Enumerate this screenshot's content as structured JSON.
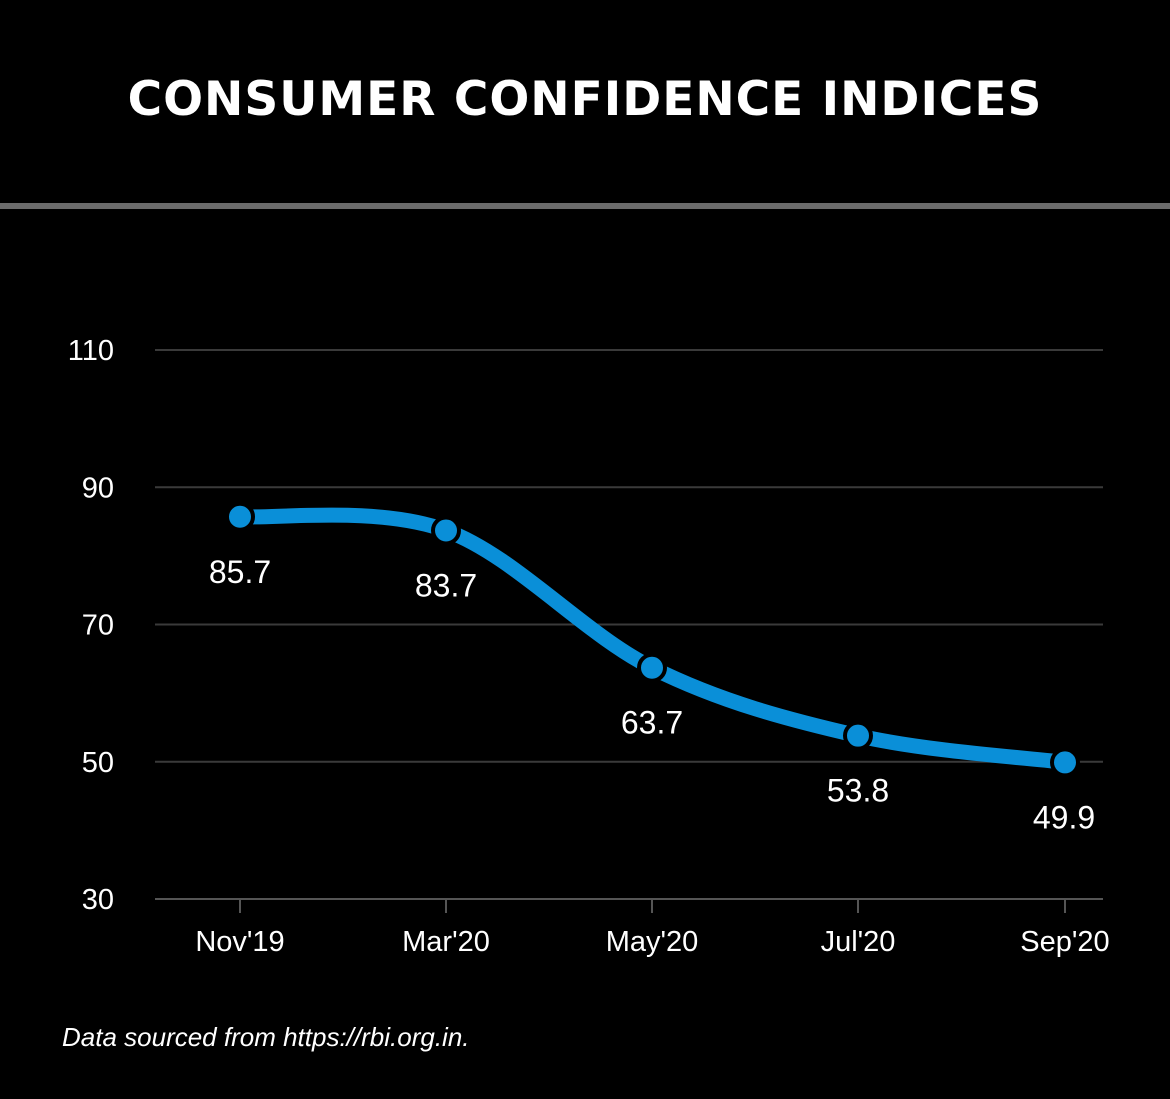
{
  "chart_data": {
    "type": "line",
    "title": "CONSUMER CONFIDENCE INDICES",
    "categories": [
      "Nov'19",
      "Mar'20",
      "May'20",
      "Jul'20",
      "Sep'20"
    ],
    "series": [
      {
        "values": [
          85.7,
          83.7,
          63.7,
          53.8,
          49.9
        ],
        "color": "#0a8fd8"
      }
    ],
    "data_labels": [
      "85.7",
      "83.7",
      "63.7",
      "53.8",
      "49.9"
    ],
    "yticks": [
      110,
      90,
      70,
      50,
      30
    ],
    "ylim": [
      30,
      110
    ],
    "xlabel": "",
    "ylabel": "",
    "grid": true,
    "colors": {
      "background": "#000000",
      "grid": "#3a3a3a",
      "text": "#ffffff",
      "divider": "#6b6b6b"
    }
  },
  "footer": {
    "source": "Data sourced from https://rbi.org.in."
  }
}
